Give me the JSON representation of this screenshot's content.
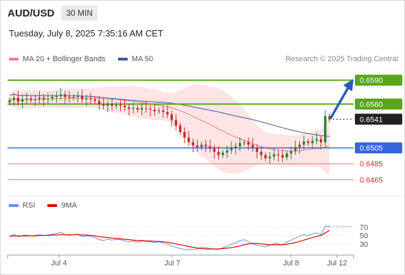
{
  "header": {
    "symbol": "AUD/USD",
    "timeframe": "30 MIN",
    "timestamp": "Tuesday, July 8, 2025 7:35:16 AM CET",
    "research": "Research © 2025 Trading Central"
  },
  "legend": {
    "ma20_label": "MA 20 + Bollinger Bands",
    "ma50_label": "MA 50",
    "rsi_label": "RSI",
    "rsi_ma_label": "9MA"
  },
  "colors": {
    "resistance": "#5aa51c",
    "support": "#3366dd",
    "target": "#e47a7a",
    "current": "#222222",
    "bull": "#2e7d32",
    "bear": "#c62828",
    "ma20": "#f08080",
    "ma50": "#3a5a9a",
    "bands": "#fde2e2",
    "arrow": "#2a5db0",
    "rsi": "#6c8fe0",
    "rsi_ma": "#e00000"
  },
  "chart_data": {
    "type": "candlestick",
    "price_ylim": [
      0.6455,
      0.66
    ],
    "levels": [
      {
        "value": 0.659,
        "label": "0.6590",
        "kind": "resistance"
      },
      {
        "value": 0.656,
        "label": "0.6560",
        "kind": "resistance"
      },
      {
        "value": 0.6541,
        "label": "0.6541",
        "kind": "current"
      },
      {
        "value": 0.6505,
        "label": "0.6505",
        "kind": "support"
      },
      {
        "value": 0.6485,
        "label": "0.6485",
        "kind": "target"
      },
      {
        "value": 0.6465,
        "label": "0.6465",
        "kind": "target"
      }
    ],
    "x_ticks": [
      "Jul 4",
      "Jul 7",
      "Jul 8",
      "Jul 12"
    ],
    "rsi_ticks": [
      70,
      50,
      30
    ],
    "rsi_ylim": [
      10,
      90
    ],
    "closes": [
      0.6565,
      0.6568,
      0.6563,
      0.6566,
      0.6567,
      0.6565,
      0.6566,
      0.6568,
      0.6566,
      0.6567,
      0.6569,
      0.657,
      0.6572,
      0.6569,
      0.6568,
      0.6569,
      0.657,
      0.6566,
      0.6567,
      0.6566,
      0.6564,
      0.656,
      0.6558,
      0.656,
      0.6558,
      0.6559,
      0.6558,
      0.6556,
      0.6554,
      0.6555,
      0.6553,
      0.6555,
      0.6554,
      0.6553,
      0.6551,
      0.6552,
      0.655,
      0.6547,
      0.654,
      0.6533,
      0.6525,
      0.6518,
      0.6512,
      0.6508,
      0.6506,
      0.6509,
      0.6507,
      0.6504,
      0.65,
      0.6496,
      0.6499,
      0.6502,
      0.6505,
      0.6507,
      0.6511,
      0.6512,
      0.6509,
      0.6505,
      0.65,
      0.6496,
      0.6492,
      0.6494,
      0.6497,
      0.6496,
      0.6493,
      0.6498,
      0.6501,
      0.6506,
      0.6509,
      0.6513,
      0.6511,
      0.6514,
      0.6516,
      0.6512,
      0.6545,
      0.6541
    ],
    "rsi": [
      48,
      52,
      47,
      50,
      51,
      49,
      50,
      52,
      50,
      51,
      53,
      55,
      57,
      52,
      50,
      52,
      53,
      47,
      49,
      48,
      45,
      40,
      38,
      41,
      39,
      41,
      40,
      37,
      35,
      37,
      34,
      37,
      36,
      35,
      33,
      35,
      32,
      30,
      25,
      22,
      19,
      17,
      16,
      16,
      18,
      22,
      21,
      19,
      18,
      17,
      21,
      25,
      29,
      32,
      38,
      40,
      35,
      30,
      27,
      25,
      23,
      27,
      31,
      30,
      28,
      35,
      39,
      44,
      48,
      52,
      50,
      54,
      56,
      52,
      72,
      71
    ],
    "rsi_ma": [
      48,
      49,
      49,
      49,
      49,
      49,
      49,
      50,
      50,
      50,
      51,
      51,
      52,
      52,
      52,
      52,
      52,
      51,
      51,
      50,
      49,
      47,
      46,
      45,
      44,
      43,
      42,
      41,
      40,
      39,
      38,
      38,
      37,
      37,
      36,
      36,
      35,
      34,
      32,
      30,
      28,
      26,
      24,
      22,
      20,
      19,
      18,
      18,
      18,
      18,
      19,
      20,
      21,
      23,
      25,
      28,
      30,
      31,
      31,
      30,
      29,
      28,
      28,
      28,
      28,
      29,
      31,
      33,
      36,
      39,
      42,
      45,
      48,
      50,
      56,
      62
    ]
  }
}
